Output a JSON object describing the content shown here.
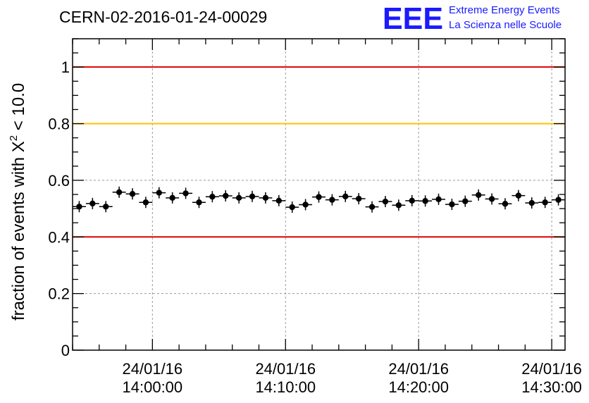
{
  "header": {
    "run_title": "CERN-02-2016-01-24-00029",
    "logo_mark": "EEE",
    "logo_line1": "Extreme Energy Events",
    "logo_line2": "La Scienza nelle Scuole"
  },
  "colors": {
    "red_line": "#e00000",
    "yellow_line": "#ffc000",
    "markers": "#000000",
    "logo": "#1a1aff"
  },
  "chart_data": {
    "type": "scatter",
    "title": "CERN-02-2016-01-24-00029",
    "ylabel_prefix": "fraction of events with ",
    "ylabel_symbol": "X",
    "ylabel_sup": "2",
    "ylabel_suffix": " < 10.0",
    "ylim": [
      0,
      1.1
    ],
    "xlim": [
      "13:54:00",
      "14:31:00"
    ],
    "yticks": [
      {
        "value": 0,
        "label": "0"
      },
      {
        "value": 0.2,
        "label": "0.2"
      },
      {
        "value": 0.4,
        "label": "0.4"
      },
      {
        "value": 0.6,
        "label": "0.6"
      },
      {
        "value": 0.8,
        "label": "0.8"
      },
      {
        "value": 1,
        "label": "1"
      }
    ],
    "xticks": [
      {
        "time": "14:00:00",
        "date": "24/01/16",
        "label": "14:00:00"
      },
      {
        "time": "14:10:00",
        "date": "24/01/16",
        "label": "14:10:00"
      },
      {
        "time": "14:20:00",
        "date": "24/01/16",
        "label": "14:20:00"
      },
      {
        "time": "14:30:00",
        "date": "24/01/16",
        "label": "14:30:00"
      }
    ],
    "grid": true,
    "reference_lines": [
      {
        "value": 1.0,
        "color": "#e00000"
      },
      {
        "value": 0.8,
        "color": "#ffc000"
      },
      {
        "value": 0.4,
        "color": "#e00000"
      }
    ],
    "points": [
      {
        "x": "13:54:30",
        "y": 0.507
      },
      {
        "x": "13:55:30",
        "y": 0.518
      },
      {
        "x": "13:56:30",
        "y": 0.507
      },
      {
        "x": "13:57:30",
        "y": 0.558
      },
      {
        "x": "13:58:30",
        "y": 0.552
      },
      {
        "x": "13:59:30",
        "y": 0.522
      },
      {
        "x": "14:00:30",
        "y": 0.556
      },
      {
        "x": "14:01:30",
        "y": 0.538
      },
      {
        "x": "14:02:30",
        "y": 0.554
      },
      {
        "x": "14:03:30",
        "y": 0.522
      },
      {
        "x": "14:04:30",
        "y": 0.542
      },
      {
        "x": "14:05:30",
        "y": 0.545
      },
      {
        "x": "14:06:30",
        "y": 0.538
      },
      {
        "x": "14:07:30",
        "y": 0.543
      },
      {
        "x": "14:08:30",
        "y": 0.538
      },
      {
        "x": "14:09:30",
        "y": 0.528
      },
      {
        "x": "14:10:30",
        "y": 0.505
      },
      {
        "x": "14:11:30",
        "y": 0.514
      },
      {
        "x": "14:12:30",
        "y": 0.541
      },
      {
        "x": "14:13:30",
        "y": 0.531
      },
      {
        "x": "14:14:30",
        "y": 0.543
      },
      {
        "x": "14:15:30",
        "y": 0.535
      },
      {
        "x": "14:16:30",
        "y": 0.506
      },
      {
        "x": "14:17:30",
        "y": 0.525
      },
      {
        "x": "14:18:30",
        "y": 0.512
      },
      {
        "x": "14:19:30",
        "y": 0.528
      },
      {
        "x": "14:20:30",
        "y": 0.527
      },
      {
        "x": "14:21:30",
        "y": 0.533
      },
      {
        "x": "14:22:30",
        "y": 0.515
      },
      {
        "x": "14:23:30",
        "y": 0.526
      },
      {
        "x": "14:24:30",
        "y": 0.548
      },
      {
        "x": "14:25:30",
        "y": 0.534
      },
      {
        "x": "14:26:30",
        "y": 0.517
      },
      {
        "x": "14:27:30",
        "y": 0.546
      },
      {
        "x": "14:28:30",
        "y": 0.52
      },
      {
        "x": "14:29:30",
        "y": 0.522
      },
      {
        "x": "14:30:30",
        "y": 0.531
      }
    ]
  }
}
